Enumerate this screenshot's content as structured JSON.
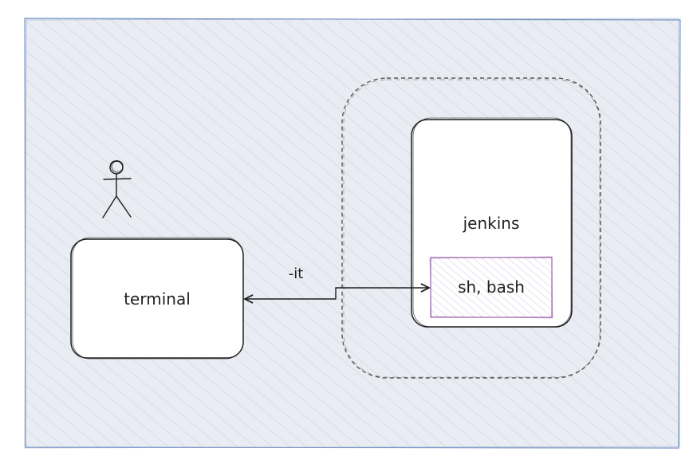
{
  "diagram": {
    "nodes": {
      "terminal": {
        "label": "terminal"
      },
      "jenkins": {
        "label": "jenkins"
      },
      "shell": {
        "label": "sh, bash"
      }
    },
    "connector": {
      "label": "-it"
    },
    "colors": {
      "frame_fill": "#e9ecf3",
      "frame_stroke": "#7a95c4",
      "hatch": "#c9cfdc",
      "node_fill": "#ffffff",
      "node_stroke": "#1e1e1e",
      "group_stroke": "#555555",
      "shell_stroke": "#a87bb8",
      "shell_hatch": "#d7c2e1",
      "arrow": "#1e1e1e"
    }
  }
}
